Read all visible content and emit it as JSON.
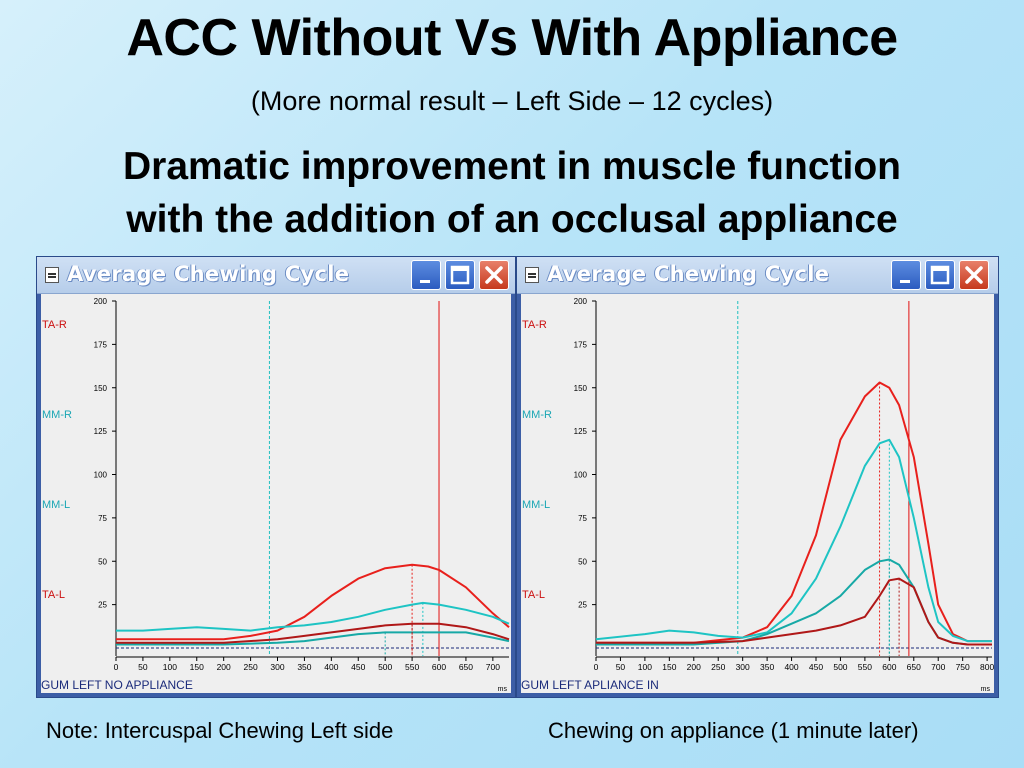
{
  "slide": {
    "title": "ACC Without Vs With Appliance",
    "subtitle": "(More normal result – Left Side – 12 cycles)",
    "headline_line1": "Dramatic improvement in muscle function",
    "headline_line2": "with the addition of an occlusal appliance",
    "note_left": "Note:  Intercuspal Chewing Left side",
    "note_right": "Chewing on appliance (1 minute later)"
  },
  "windows": [
    {
      "title": "Average Chewing Cycle",
      "minimize_icon": "minimize-icon",
      "maximize_icon": "maximize-icon",
      "close_icon": "close-icon"
    },
    {
      "title": "Average Chewing Cycle",
      "minimize_icon": "minimize-icon",
      "maximize_icon": "maximize-icon",
      "close_icon": "close-icon"
    }
  ],
  "colors": {
    "TA-R": "#e8201c",
    "MM-R": "#1ec4c4",
    "MM-L": "#17a9a6",
    "TA-L": "#b01818",
    "vline_red": "#e01010",
    "vline_cyan": "#20c0c0",
    "axis_text": "#000000"
  },
  "chart_data": [
    {
      "type": "line",
      "caption": "GUM LEFT NO APPLIANCE",
      "x_unit": "ms",
      "channel_labels": [
        "TA-R",
        "MM-R",
        "MM-L",
        "TA-L"
      ],
      "ylim": [
        0,
        200
      ],
      "yticks": [
        25,
        50,
        75,
        100,
        125,
        150,
        175,
        200
      ],
      "xlim": [
        0,
        730
      ],
      "xticks": [
        0,
        50,
        100,
        150,
        200,
        250,
        300,
        350,
        400,
        450,
        500,
        550,
        600,
        650,
        700
      ],
      "x_tick_labels": [
        "0",
        "50",
        "100",
        "150",
        "200",
        "250",
        "300",
        "350",
        "400",
        "450",
        "500",
        "550",
        "600",
        "650",
        "700"
      ],
      "markers": [
        {
          "x": 285,
          "style": "dashed",
          "color": "cyan"
        },
        {
          "x": 600,
          "style": "solid",
          "color": "red"
        }
      ],
      "series": [
        {
          "name": "TA-R",
          "x": [
            0,
            100,
            200,
            250,
            300,
            350,
            400,
            450,
            500,
            550,
            580,
            600,
            650,
            700,
            730
          ],
          "values": [
            5,
            5,
            5,
            7,
            10,
            18,
            30,
            40,
            46,
            48,
            47,
            45,
            35,
            20,
            12
          ]
        },
        {
          "name": "MM-R",
          "x": [
            0,
            50,
            100,
            150,
            200,
            250,
            300,
            350,
            400,
            450,
            500,
            550,
            570,
            600,
            650,
            700,
            730
          ],
          "values": [
            10,
            10,
            11,
            12,
            11,
            10,
            12,
            13,
            15,
            18,
            22,
            25,
            26,
            25,
            22,
            18,
            14
          ]
        },
        {
          "name": "MM-L",
          "x": [
            0,
            100,
            200,
            300,
            350,
            400,
            450,
            500,
            550,
            600,
            650,
            700,
            730
          ],
          "values": [
            2,
            2,
            2,
            3,
            4,
            6,
            8,
            9,
            9,
            9,
            9,
            6,
            4
          ]
        },
        {
          "name": "TA-L",
          "x": [
            0,
            100,
            200,
            300,
            350,
            400,
            450,
            500,
            550,
            600,
            650,
            700,
            730
          ],
          "values": [
            3,
            3,
            3,
            5,
            7,
            9,
            11,
            13,
            14,
            14,
            12,
            8,
            5
          ]
        }
      ]
    },
    {
      "type": "line",
      "caption": "GUM LEFT APLIANCE IN",
      "x_unit": "ms",
      "channel_labels": [
        "TA-R",
        "MM-R",
        "MM-L",
        "TA-L"
      ],
      "ylim": [
        0,
        200
      ],
      "yticks": [
        25,
        50,
        75,
        100,
        125,
        150,
        175,
        200
      ],
      "xlim": [
        0,
        810
      ],
      "xticks": [
        0,
        50,
        100,
        150,
        200,
        250,
        300,
        350,
        400,
        450,
        500,
        550,
        600,
        650,
        700,
        750,
        800
      ],
      "x_tick_labels": [
        "0",
        "50",
        "100",
        "150",
        "200",
        "250",
        "300",
        "350",
        "400",
        "450",
        "500",
        "550",
        "600",
        "650",
        "700",
        "750",
        "800"
      ],
      "markers": [
        {
          "x": 290,
          "style": "dashed",
          "color": "cyan"
        },
        {
          "x": 640,
          "style": "solid",
          "color": "red"
        }
      ],
      "series": [
        {
          "name": "TA-R",
          "x": [
            0,
            100,
            200,
            300,
            350,
            400,
            450,
            500,
            550,
            580,
            600,
            620,
            650,
            680,
            700,
            730,
            760,
            810
          ],
          "values": [
            3,
            3,
            3,
            6,
            12,
            30,
            65,
            120,
            145,
            153,
            150,
            140,
            110,
            60,
            25,
            8,
            4,
            4
          ]
        },
        {
          "name": "MM-R",
          "x": [
            0,
            100,
            150,
            200,
            250,
            300,
            350,
            400,
            450,
            500,
            550,
            580,
            600,
            620,
            650,
            680,
            700,
            730,
            760,
            810
          ],
          "values": [
            5,
            8,
            10,
            9,
            7,
            6,
            9,
            20,
            40,
            70,
            105,
            118,
            120,
            110,
            75,
            35,
            15,
            7,
            4,
            4
          ]
        },
        {
          "name": "MM-L",
          "x": [
            0,
            100,
            200,
            300,
            350,
            400,
            450,
            500,
            550,
            580,
            600,
            620,
            650,
            680,
            700,
            730,
            760,
            810
          ],
          "values": [
            2,
            2,
            2,
            4,
            8,
            14,
            20,
            30,
            45,
            50,
            51,
            48,
            35,
            15,
            6,
            3,
            2,
            2
          ]
        },
        {
          "name": "TA-L",
          "x": [
            0,
            100,
            200,
            300,
            350,
            400,
            450,
            500,
            550,
            580,
            600,
            620,
            650,
            680,
            700,
            730,
            760,
            810
          ],
          "values": [
            3,
            3,
            3,
            4,
            6,
            8,
            10,
            13,
            18,
            30,
            39,
            40,
            35,
            15,
            6,
            3,
            2,
            2
          ]
        }
      ]
    }
  ]
}
